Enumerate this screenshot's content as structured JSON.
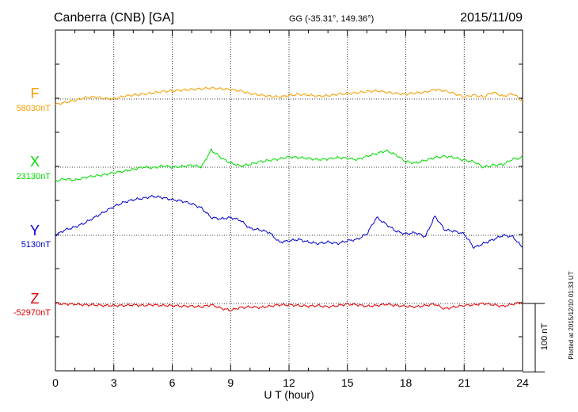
{
  "header": {
    "station": "Canberra (CNB)  [GA]",
    "coords": "GG (-35.31°, 149.36°)",
    "date": "2015/11/09"
  },
  "side_note": "Plotted at 2015/12/10 01:33 UT",
  "scale_bar_label": "100 nT",
  "chart_data": {
    "type": "line",
    "xlabel": "U T (hour)",
    "xlim": [
      0,
      24
    ],
    "x_ticks": [
      0,
      3,
      6,
      9,
      12,
      15,
      18,
      21,
      24
    ],
    "x_tick_labels": [
      "0",
      "3",
      "6",
      "9",
      "12",
      "15",
      "18",
      "21",
      "24"
    ],
    "grid": true,
    "scale_bar_nT": 100,
    "series": [
      {
        "name": "F",
        "baseline_label": "58030nT",
        "baseline_nT": 58030,
        "color": "#f4a000",
        "x": [
          0,
          0.5,
          1,
          1.5,
          2,
          2.5,
          3,
          3.5,
          4,
          4.5,
          5,
          5.5,
          6,
          6.5,
          7,
          7.5,
          8,
          8.5,
          9,
          9.5,
          10,
          10.5,
          11,
          11.5,
          12,
          12.5,
          13,
          13.5,
          14,
          14.5,
          15,
          15.5,
          16,
          16.5,
          17,
          17.5,
          18,
          18.5,
          19,
          19.5,
          20,
          20.5,
          21,
          21.5,
          22,
          22.5,
          23,
          23.5,
          24
        ],
        "y": [
          -8,
          -5,
          -2,
          2,
          3,
          1,
          0,
          4,
          6,
          7,
          9,
          11,
          12,
          13,
          14,
          15,
          16,
          15,
          14,
          12,
          8,
          6,
          4,
          3,
          5,
          7,
          6,
          4,
          5,
          7,
          8,
          9,
          11,
          12,
          10,
          8,
          7,
          9,
          10,
          14,
          12,
          8,
          3,
          6,
          3,
          10,
          4,
          8,
          -3
        ]
      },
      {
        "name": "X",
        "baseline_label": "23130nT",
        "baseline_nT": 23130,
        "color": "#00dd00",
        "x": [
          0,
          0.5,
          1,
          1.5,
          2,
          2.5,
          3,
          3.5,
          4,
          4.5,
          5,
          5.5,
          6,
          6.5,
          7,
          7.5,
          8,
          8.5,
          9,
          9.5,
          10,
          10.5,
          11,
          11.5,
          12,
          12.5,
          13,
          13.5,
          14,
          14.5,
          15,
          15.5,
          16,
          16.5,
          17,
          17.5,
          18,
          18.5,
          19,
          19.5,
          20,
          20.5,
          21,
          21.5,
          22,
          22.5,
          23,
          23.5,
          24
        ],
        "y": [
          -20,
          -17,
          -19,
          -15,
          -13,
          -11,
          -8,
          -6,
          -3,
          0,
          -1,
          2,
          0,
          1,
          3,
          0,
          25,
          14,
          6,
          2,
          4,
          8,
          10,
          12,
          15,
          14,
          13,
          11,
          12,
          14,
          13,
          11,
          16,
          20,
          24,
          18,
          8,
          6,
          10,
          14,
          16,
          14,
          10,
          8,
          0,
          3,
          4,
          12,
          14
        ]
      },
      {
        "name": "Y",
        "baseline_label": "5130nT",
        "baseline_nT": 5130,
        "color": "#0000cc",
        "x": [
          0,
          0.5,
          1,
          1.5,
          2,
          2.5,
          3,
          3.5,
          4,
          4.5,
          5,
          5.5,
          6,
          6.5,
          7,
          7.5,
          8,
          8.5,
          9,
          9.5,
          10,
          10.5,
          11,
          11.5,
          12,
          12.5,
          13,
          13.5,
          14,
          14.5,
          15,
          15.5,
          16,
          16.5,
          17,
          17.5,
          18,
          18.5,
          19,
          19.5,
          20,
          20.5,
          21,
          21.5,
          22,
          22.5,
          23,
          23.5,
          24
        ],
        "y": [
          0,
          8,
          12,
          18,
          26,
          34,
          42,
          48,
          52,
          54,
          57,
          55,
          52,
          50,
          46,
          40,
          26,
          24,
          26,
          22,
          10,
          8,
          4,
          -10,
          -8,
          -6,
          -10,
          -12,
          -10,
          -12,
          -8,
          -6,
          2,
          26,
          16,
          6,
          2,
          4,
          -2,
          28,
          8,
          6,
          2,
          -18,
          -12,
          -6,
          0,
          -2,
          -18
        ]
      },
      {
        "name": "Z",
        "baseline_label": "-52970nT",
        "baseline_nT": -52970,
        "color": "#dd0000",
        "x": [
          0,
          0.5,
          1,
          1.5,
          2,
          2.5,
          3,
          3.5,
          4,
          4.5,
          5,
          5.5,
          6,
          6.5,
          7,
          7.5,
          8,
          8.5,
          9,
          9.5,
          10,
          10.5,
          11,
          11.5,
          12,
          12.5,
          13,
          13.5,
          14,
          14.5,
          15,
          15.5,
          16,
          16.5,
          17,
          17.5,
          18,
          18.5,
          19,
          19.5,
          20,
          20.5,
          21,
          21.5,
          22,
          22.5,
          23,
          23.5,
          24
        ],
        "y": [
          0,
          -1,
          -1,
          -2,
          -2,
          -3,
          -3,
          -3,
          -2,
          -3,
          -2,
          -3,
          -3,
          -4,
          -4,
          -5,
          -2,
          -7,
          -10,
          -6,
          -5,
          -6,
          -4,
          -2,
          -2,
          -3,
          -4,
          -3,
          -5,
          -3,
          -1,
          -2,
          -4,
          -3,
          -1,
          -3,
          -4,
          -5,
          -3,
          -1,
          -8,
          -5,
          -3,
          -2,
          0,
          -2,
          -4,
          -1,
          2
        ]
      }
    ]
  }
}
